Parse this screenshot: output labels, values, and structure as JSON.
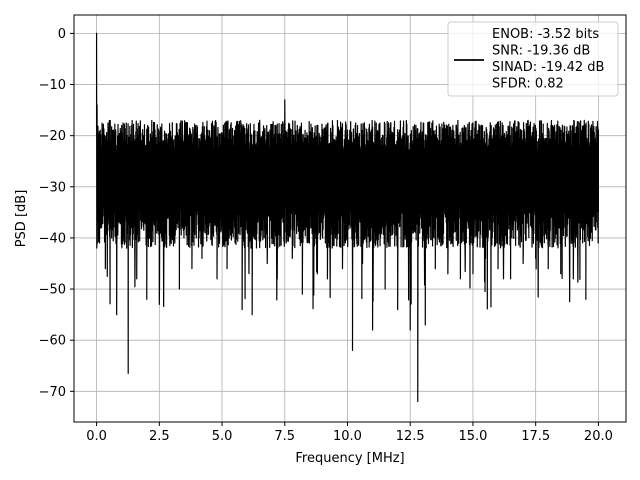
{
  "chart_data": {
    "type": "line",
    "title": "",
    "xlabel": "Frequency [MHz]",
    "ylabel": "PSD [dB]",
    "xlim": [
      -0.9,
      21.1
    ],
    "ylim": [
      -76.0,
      3.6
    ],
    "xticks": [
      0.0,
      2.5,
      5.0,
      7.5,
      10.0,
      12.5,
      15.0,
      17.5,
      20.0
    ],
    "xtick_labels": [
      "0.0",
      "2.5",
      "5.0",
      "7.5",
      "10.0",
      "12.5",
      "15.0",
      "17.5",
      "20.0"
    ],
    "yticks": [
      0,
      -10,
      -20,
      -30,
      -40,
      -50,
      -60,
      -70
    ],
    "ytick_labels": [
      "0",
      "−10",
      "−20",
      "−30",
      "−40",
      "−50",
      "−60",
      "−70"
    ],
    "grid": true,
    "legend_position": "top-right",
    "legend_lines": [
      "ENOB: -3.52 bits",
      "SNR: -19.36 dB",
      "SINAD: -19.42 dB",
      "SFDR: 0.82"
    ],
    "line_color": "#000000",
    "series": [
      {
        "x_start": 0.0,
        "x_end": 20.0,
        "noise_band_upper": -17,
        "noise_band_lower": -40,
        "x": [
          0.0,
          0.02,
          0.05,
          0.1,
          0.2,
          0.35,
          0.5,
          0.6,
          0.8,
          1.0,
          1.2,
          1.26,
          1.4,
          1.6,
          1.8,
          2.0,
          2.2,
          2.5,
          2.8,
          3.0,
          3.3,
          3.5,
          3.8,
          4.0,
          4.2,
          4.5,
          4.8,
          5.0,
          5.2,
          5.5,
          5.8,
          6.0,
          6.2,
          6.5,
          6.8,
          7.0,
          7.2,
          7.5,
          7.8,
          8.0,
          8.2,
          8.5,
          8.8,
          9.0,
          9.2,
          9.5,
          9.8,
          10.0,
          10.2,
          10.4,
          10.6,
          10.8,
          11.0,
          11.2,
          11.5,
          11.8,
          12.0,
          12.2,
          12.5,
          12.8,
          12.9,
          13.1,
          13.3,
          13.5,
          13.8,
          14.0,
          14.2,
          14.5,
          14.8,
          15.0,
          15.2,
          15.5,
          15.8,
          16.0,
          16.2,
          16.5,
          16.8,
          17.0,
          17.2,
          17.5,
          17.8,
          18.0,
          18.2,
          18.5,
          18.8,
          19.0,
          19.2,
          19.5,
          19.8,
          20.0
        ],
        "y": [
          0.0,
          -14.0,
          -36.0,
          -22.0,
          -38.0,
          -46.0,
          -24.0,
          -40.0,
          -55.0,
          -18.0,
          -42.0,
          -66.5,
          -20.0,
          -48.0,
          -21.0,
          -52.0,
          -19.0,
          -53.0,
          -22.0,
          -40.0,
          -50.0,
          -20.0,
          -46.0,
          -18.0,
          -44.0,
          -19.0,
          -48.0,
          -22.0,
          -46.0,
          -19.0,
          -54.0,
          -21.0,
          -55.0,
          -17.0,
          -45.0,
          -20.0,
          -48.0,
          -13.0,
          -44.0,
          -18.0,
          -51.0,
          -20.0,
          -47.0,
          -19.0,
          -48.0,
          -21.0,
          -46.0,
          -20.0,
          -62.0,
          -18.0,
          -45.0,
          -21.0,
          -58.0,
          -19.0,
          -50.0,
          -22.0,
          -54.0,
          -20.0,
          -58.0,
          -72.0,
          -22.0,
          -57.0,
          -19.0,
          -46.0,
          -20.0,
          -47.0,
          -18.0,
          -48.0,
          -21.0,
          -47.0,
          -19.0,
          -44.0,
          -20.0,
          -46.0,
          -18.0,
          -48.0,
          -21.0,
          -45.0,
          -17.0,
          -44.0,
          -20.0,
          -46.0,
          -19.0,
          -47.0,
          -21.0,
          -48.0,
          -20.0,
          -52.0,
          -19.0,
          -35.0
        ]
      }
    ]
  }
}
